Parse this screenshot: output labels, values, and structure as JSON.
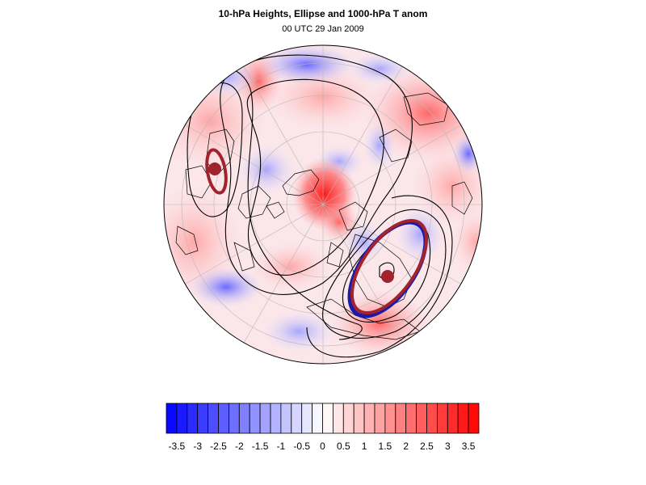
{
  "header": {
    "title": "10-hPa Heights, Ellipse and 1000-hPa T anom",
    "subtitle": "00 UTC 29 Jan 2009"
  },
  "colors": {
    "negative": "#0000ff",
    "positive": "#ff0000",
    "ellipse": "#a0232d",
    "ellipse_outline": "#1a1aaa",
    "contour": "#000000"
  },
  "colorbar": {
    "labels": [
      "-3.5",
      "-3",
      "-2.5",
      "-2",
      "-1.5",
      "-1",
      "-0.5",
      "0",
      "0.5",
      "1",
      "1.5",
      "2",
      "2.5",
      "3",
      "3.5"
    ],
    "values": [
      -3.75,
      -3.5,
      -3.25,
      -3,
      -2.75,
      -2.5,
      -2.25,
      -2,
      -1.75,
      -1.5,
      -1.25,
      -1,
      -0.75,
      -0.5,
      -0.25,
      0,
      0.25,
      0.5,
      0.75,
      1,
      1.25,
      1.5,
      1.75,
      2,
      2.25,
      2.5,
      2.75,
      3,
      3.25,
      3.5,
      3.75
    ],
    "min": -3.75,
    "max": 3.75
  }
}
